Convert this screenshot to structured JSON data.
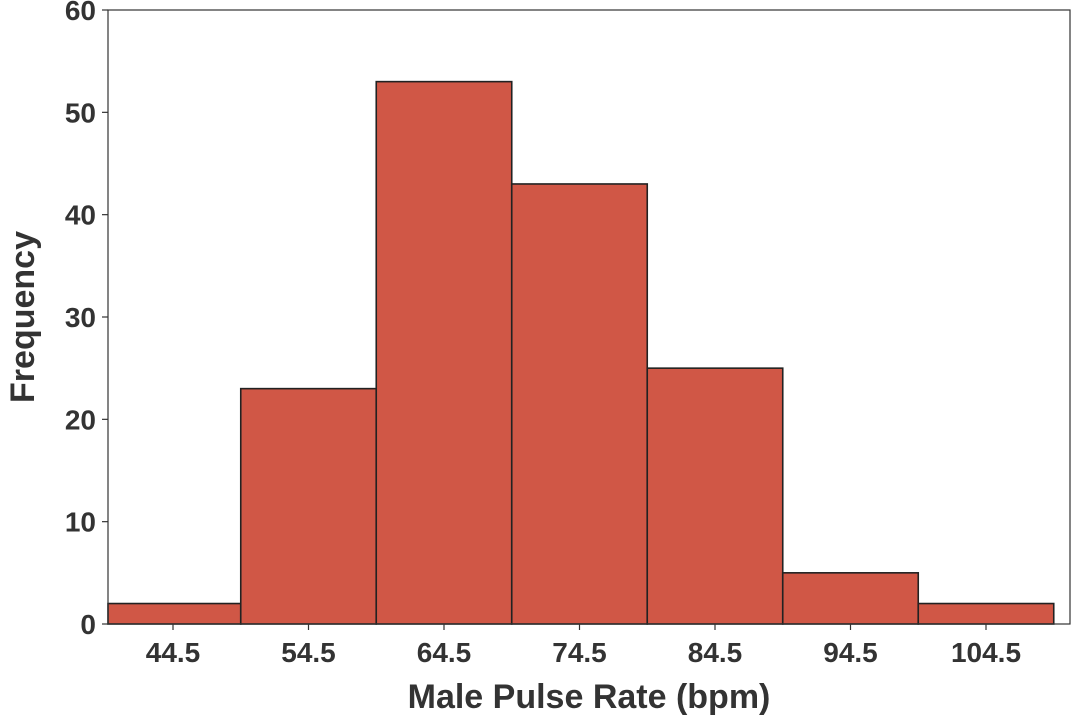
{
  "chart_data": {
    "type": "bar",
    "subtype": "histogram",
    "xlabel": "Male Pulse Rate (bpm)",
    "ylabel": "Frequency",
    "categories": [
      "44.5",
      "54.5",
      "64.5",
      "74.5",
      "84.5",
      "94.5",
      "104.5"
    ],
    "values": [
      2,
      23,
      53,
      43,
      25,
      5,
      2
    ],
    "ylim": [
      0,
      60
    ],
    "yticks": [
      0,
      10,
      20,
      30,
      40,
      50,
      60
    ],
    "grid": false,
    "bar_color": "#d05746",
    "bar_edge_color": "#222222",
    "text_color": "#333333"
  }
}
